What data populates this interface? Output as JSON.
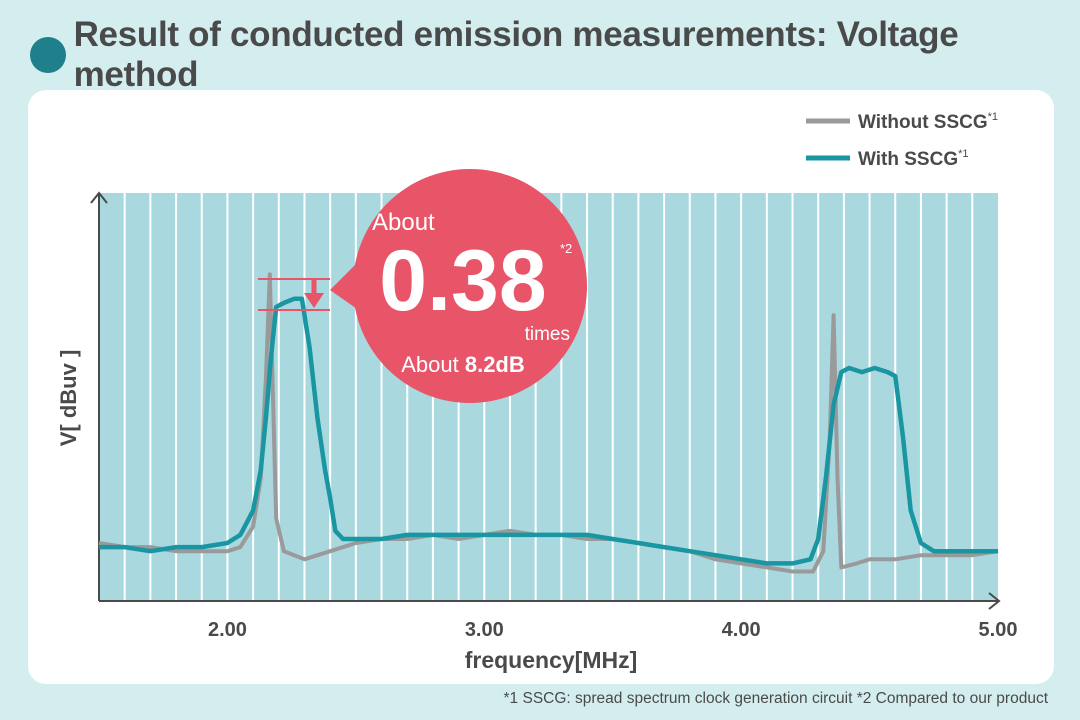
{
  "title": "Result of conducted emission measurements: Voltage method",
  "footnote": "*1 SSCG: spread spectrum clock generation circuit  *2 Compared to our product",
  "colors": {
    "background": "#d4eef0",
    "title_dot": "#1f7f8b",
    "plot_bg": "#a9d8df",
    "without": "#9a9a9a",
    "with": "#1a96a3",
    "bubble": "#e85468",
    "text": "#4a4a4a"
  },
  "callout": {
    "prefix": "About",
    "value": "0.38",
    "value_sup": "*2",
    "unit": "times",
    "db_prefix": "About",
    "db_value": "8.2dB"
  },
  "chart_data": {
    "type": "line",
    "xlabel": "frequency[MHz]",
    "ylabel": "V[ dBuv ]",
    "xlim": [
      1.5,
      5.0
    ],
    "ylim": [
      0,
      100
    ],
    "xticks": [
      2.0,
      3.0,
      4.0,
      5.0
    ],
    "xtick_labels": [
      "2.00",
      "3.00",
      "4.00",
      "5.00"
    ],
    "grid": "vertical stripes",
    "legend_position": "top-right",
    "series": [
      {
        "name": "Without SSCG",
        "name_sup": "*1",
        "color": "#9a9a9a",
        "points": [
          [
            1.5,
            14
          ],
          [
            1.6,
            13
          ],
          [
            1.7,
            13
          ],
          [
            1.8,
            12
          ],
          [
            1.9,
            12
          ],
          [
            2.0,
            12
          ],
          [
            2.05,
            13
          ],
          [
            2.1,
            18
          ],
          [
            2.13,
            30
          ],
          [
            2.15,
            55
          ],
          [
            2.165,
            80
          ],
          [
            2.175,
            55
          ],
          [
            2.19,
            20
          ],
          [
            2.22,
            12
          ],
          [
            2.3,
            10
          ],
          [
            2.4,
            12
          ],
          [
            2.5,
            14
          ],
          [
            2.6,
            15
          ],
          [
            2.7,
            15
          ],
          [
            2.8,
            16
          ],
          [
            2.9,
            15
          ],
          [
            3.0,
            16
          ],
          [
            3.1,
            17
          ],
          [
            3.2,
            16
          ],
          [
            3.3,
            16
          ],
          [
            3.4,
            15
          ],
          [
            3.5,
            15
          ],
          [
            3.6,
            14
          ],
          [
            3.7,
            13
          ],
          [
            3.8,
            12
          ],
          [
            3.9,
            10
          ],
          [
            4.0,
            9
          ],
          [
            4.1,
            8
          ],
          [
            4.2,
            7
          ],
          [
            4.28,
            7
          ],
          [
            4.32,
            12
          ],
          [
            4.345,
            40
          ],
          [
            4.36,
            70
          ],
          [
            4.375,
            30
          ],
          [
            4.39,
            8
          ],
          [
            4.45,
            9
          ],
          [
            4.5,
            10
          ],
          [
            4.6,
            10
          ],
          [
            4.7,
            11
          ],
          [
            4.8,
            11
          ],
          [
            4.9,
            11
          ],
          [
            5.0,
            12
          ]
        ]
      },
      {
        "name": "With SSCG",
        "name_sup": "*1",
        "color": "#1a96a3",
        "points": [
          [
            1.5,
            13
          ],
          [
            1.6,
            13
          ],
          [
            1.7,
            12
          ],
          [
            1.8,
            13
          ],
          [
            1.9,
            13
          ],
          [
            2.0,
            14
          ],
          [
            2.05,
            16
          ],
          [
            2.1,
            22
          ],
          [
            2.13,
            32
          ],
          [
            2.15,
            45
          ],
          [
            2.17,
            60
          ],
          [
            2.19,
            72
          ],
          [
            2.22,
            73
          ],
          [
            2.26,
            74
          ],
          [
            2.29,
            74
          ],
          [
            2.32,
            62
          ],
          [
            2.35,
            45
          ],
          [
            2.38,
            32
          ],
          [
            2.4,
            25
          ],
          [
            2.42,
            17
          ],
          [
            2.45,
            15
          ],
          [
            2.5,
            15
          ],
          [
            2.6,
            15
          ],
          [
            2.7,
            16
          ],
          [
            2.8,
            16
          ],
          [
            2.9,
            16
          ],
          [
            3.0,
            16
          ],
          [
            3.1,
            16
          ],
          [
            3.2,
            16
          ],
          [
            3.3,
            16
          ],
          [
            3.4,
            16
          ],
          [
            3.5,
            15
          ],
          [
            3.6,
            14
          ],
          [
            3.7,
            13
          ],
          [
            3.8,
            12
          ],
          [
            3.9,
            11
          ],
          [
            4.0,
            10
          ],
          [
            4.1,
            9
          ],
          [
            4.2,
            9
          ],
          [
            4.27,
            10
          ],
          [
            4.3,
            15
          ],
          [
            4.33,
            30
          ],
          [
            4.36,
            48
          ],
          [
            4.39,
            56
          ],
          [
            4.42,
            57
          ],
          [
            4.47,
            56
          ],
          [
            4.52,
            57
          ],
          [
            4.57,
            56
          ],
          [
            4.6,
            55
          ],
          [
            4.63,
            40
          ],
          [
            4.66,
            22
          ],
          [
            4.7,
            14
          ],
          [
            4.75,
            12
          ],
          [
            4.8,
            12
          ],
          [
            4.9,
            12
          ],
          [
            5.0,
            12
          ]
        ]
      }
    ]
  }
}
